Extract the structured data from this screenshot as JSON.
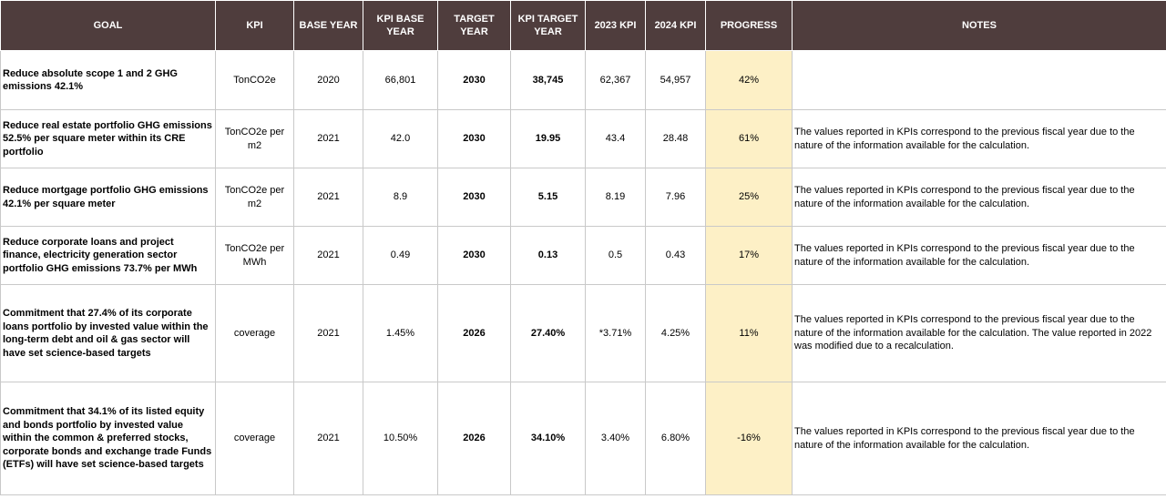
{
  "headers": {
    "goal": "GOAL",
    "kpi": "KPI",
    "base_year": "BASE YEAR",
    "kpi_base_year": "KPI BASE YEAR",
    "target_year": "TARGET YEAR",
    "kpi_target_year": "KPI TARGET YEAR",
    "kpi_2023": "2023 KPI",
    "kpi_2024": "2024 KPI",
    "progress": "PROGRESS",
    "notes": "NOTES"
  },
  "rows": [
    {
      "goal": "Reduce absolute scope 1 and 2 GHG emissions 42.1%",
      "kpi": "TonCO2e",
      "base_year": "2020",
      "kpi_base_year": "66,801",
      "target_year": "2030",
      "kpi_target_year": "38,745",
      "kpi_2023": "62,367",
      "kpi_2024": "54,957",
      "progress": "42%",
      "notes": ""
    },
    {
      "goal": "Reduce real estate portfolio GHG emissions 52.5% per square meter within its CRE portfolio",
      "kpi": "TonCO2e per m2",
      "base_year": "2021",
      "kpi_base_year": "42.0",
      "target_year": "2030",
      "kpi_target_year": "19.95",
      "kpi_2023": "43.4",
      "kpi_2024": "28.48",
      "progress": "61%",
      "notes": "The values reported in KPIs correspond to the previous fiscal year due to the nature of the information available for the calculation."
    },
    {
      "goal": "Reduce mortgage portfolio GHG emissions 42.1% per square meter",
      "kpi": "TonCO2e per m2",
      "base_year": "2021",
      "kpi_base_year": "8.9",
      "target_year": "2030",
      "kpi_target_year": "5.15",
      "kpi_2023": "8.19",
      "kpi_2024": "7.96",
      "progress": "25%",
      "notes": "The values reported in KPIs correspond to the previous fiscal year due to the nature of the information available for the calculation."
    },
    {
      "goal": "Reduce corporate loans and project finance, electricity generation sector portfolio GHG emissions 73.7% per MWh",
      "kpi": "TonCO2e per MWh",
      "base_year": "2021",
      "kpi_base_year": "0.49",
      "target_year": "2030",
      "kpi_target_year": "0.13",
      "kpi_2023": "0.5",
      "kpi_2024": "0.43",
      "progress": "17%",
      "notes": "The values reported in KPIs correspond to the previous fiscal year due to the nature of the information available for the calculation."
    },
    {
      "goal": "Commitment that 27.4% of its corporate loans portfolio by invested value within the long-term debt and oil & gas sector will have set science-based targets",
      "kpi": "coverage",
      "base_year": "2021",
      "kpi_base_year": "1.45%",
      "target_year": "2026",
      "kpi_target_year": "27.40%",
      "kpi_2023": "*3.71%",
      "kpi_2024": "4.25%",
      "progress": "11%",
      "notes": "The values reported in KPIs correspond to the previous fiscal year due to the nature of the information available for the calculation. The value reported in 2022 was modified due to a recalculation."
    },
    {
      "goal": "Commitment that 34.1% of its listed equity and bonds portfolio by invested value within the common & preferred stocks, corporate bonds and exchange trade Funds (ETFs) will have set science-based targets",
      "kpi": "coverage",
      "base_year": "2021",
      "kpi_base_year": "10.50%",
      "target_year": "2026",
      "kpi_target_year": "34.10%",
      "kpi_2023": "3.40%",
      "kpi_2024": "6.80%",
      "progress": "-16%",
      "notes": "The values reported in KPIs correspond to the previous fiscal year due to the nature of the information available for the calculation."
    }
  ]
}
